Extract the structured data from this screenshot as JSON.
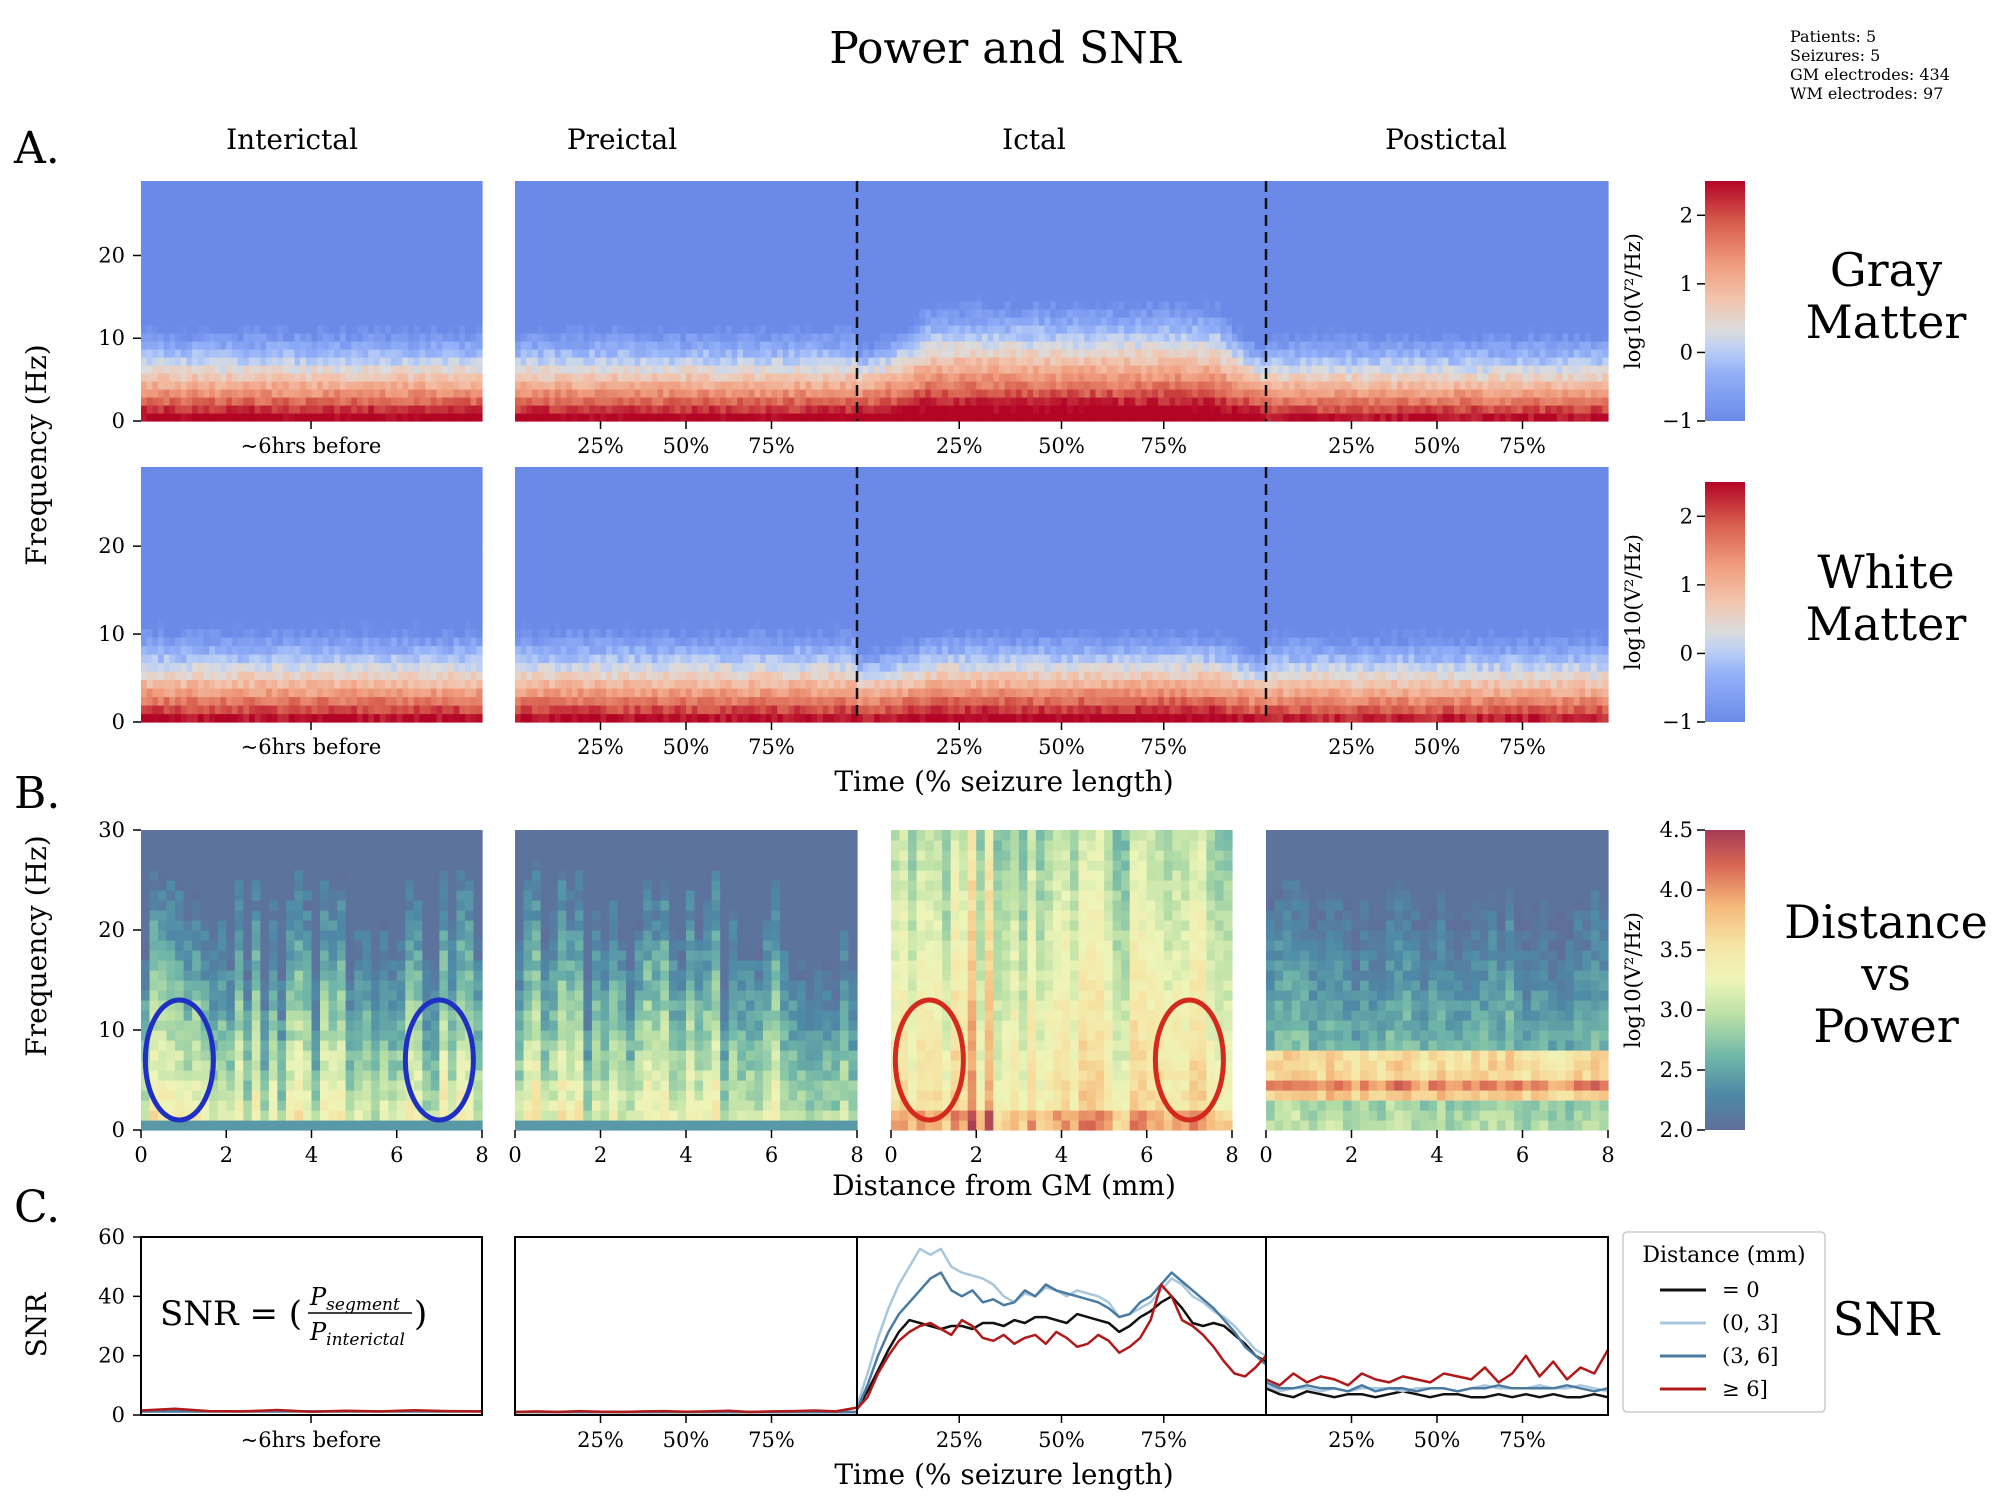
{
  "figure": {
    "title": "Power and SNR",
    "stats": [
      "Patients: 5",
      "Seizures: 5",
      "GM electrodes: 434",
      "WM electrodes: 97"
    ],
    "panel_labels": [
      "A.",
      "B.",
      "C."
    ],
    "columns": [
      "Interictal",
      "Preictal",
      "Ictal",
      "Postictal"
    ],
    "row_labels": {
      "gray": [
        "Gray",
        "Matter"
      ],
      "white": [
        "White",
        "Matter"
      ],
      "distance": [
        "Distance",
        "vs",
        "Power"
      ],
      "snr": "SNR"
    },
    "axis_labels": {
      "frequency": "Frequency (Hz)",
      "time": "Time (% seizure length)",
      "distance": "Distance from GM (mm)",
      "snr": "SNR"
    },
    "interictal_tick": "~6hrs before",
    "snr_formula": {
      "lhs": "SNR = (",
      "numerator": "P",
      "num_sub": "segment",
      "denominator": "P",
      "den_sub": "interictal",
      "rhs": ")"
    }
  },
  "chart_data": [
    {
      "type": "heatmap",
      "panel": "A",
      "name": "Gray Matter",
      "ylabel": "Frequency (Hz)",
      "xlabel": "Time (% seizure length)",
      "y_ticks": [
        0,
        10,
        20
      ],
      "ylim": [
        0,
        29
      ],
      "x_ticks": [
        "25%",
        "50%",
        "75%"
      ],
      "colorbar": {
        "label": "log10(V²/Hz)",
        "ticks": [
          -1,
          0,
          1,
          2
        ],
        "range": [
          -1,
          2.5
        ],
        "cmap": "coolwarm"
      },
      "segments": [
        "Interictal",
        "Preictal",
        "Ictal",
        "Postictal"
      ]
    },
    {
      "type": "heatmap",
      "panel": "A",
      "name": "White Matter",
      "ylabel": "Frequency (Hz)",
      "xlabel": "Time (% seizure length)",
      "y_ticks": [
        0,
        10,
        20
      ],
      "ylim": [
        0,
        29
      ],
      "x_ticks": [
        "25%",
        "50%",
        "75%"
      ],
      "colorbar": {
        "label": "log10(V²/Hz)",
        "ticks": [
          -1,
          0,
          1,
          2
        ],
        "range": [
          -1,
          2.5
        ],
        "cmap": "coolwarm"
      },
      "segments": [
        "Interictal",
        "Preictal",
        "Ictal",
        "Postictal"
      ]
    },
    {
      "type": "heatmap",
      "panel": "B",
      "name": "Distance vs Power",
      "ylabel": "Frequency (Hz)",
      "xlabel": "Distance from GM (mm)",
      "x_ticks": [
        0,
        2,
        4,
        6,
        8
      ],
      "xlim": [
        0,
        8
      ],
      "y_ticks": [
        0,
        10,
        20,
        30
      ],
      "ylim": [
        0,
        30
      ],
      "colorbar": {
        "label": "log10(V²/Hz)",
        "ticks": [
          2.0,
          2.5,
          3.0,
          3.5,
          4.0,
          4.5
        ],
        "range": [
          2.0,
          4.5
        ],
        "cmap": "Spectral_r"
      },
      "segments": [
        "Interictal",
        "Preictal",
        "Ictal",
        "Postictal"
      ],
      "annotations": [
        {
          "segment": "Interictal",
          "center": [
            0.9,
            7
          ],
          "color": "#1f2fc4"
        },
        {
          "segment": "Interictal",
          "center": [
            7.0,
            7
          ],
          "color": "#1f2fc4"
        },
        {
          "segment": "Ictal",
          "center": [
            0.9,
            7
          ],
          "color": "#d42a1e"
        },
        {
          "segment": "Ictal",
          "center": [
            7.0,
            7
          ],
          "color": "#d42a1e"
        }
      ]
    },
    {
      "type": "line",
      "panel": "C",
      "ylabel": "SNR",
      "xlabel": "Time (% seizure length)",
      "ylim": [
        0,
        60
      ],
      "y_ticks": [
        0,
        20,
        40,
        60
      ],
      "x_ticks": [
        "25%",
        "50%",
        "75%"
      ],
      "legend": {
        "title": "Distance (mm)",
        "placement": "right"
      },
      "series": [
        {
          "name": "= 0",
          "color": "#111111",
          "interictal": [
            1.2,
            1.2
          ],
          "preictal": [
            1.0,
            1.0
          ],
          "ictal": [
            2,
            8,
            15,
            22,
            28,
            32,
            31,
            30,
            29,
            30,
            30,
            29,
            31,
            31,
            30,
            32,
            31,
            33,
            33,
            32,
            31,
            34,
            33,
            32,
            31,
            28,
            30,
            33,
            35,
            38,
            40,
            36,
            31,
            30,
            31,
            30,
            27,
            24,
            20,
            18
          ],
          "postictal": [
            9,
            7,
            6,
            8,
            7,
            6,
            7,
            7,
            6,
            7,
            8,
            7,
            6,
            7,
            7,
            6,
            6,
            7,
            6,
            7,
            6,
            7,
            6,
            6,
            7,
            6
          ]
        },
        {
          "name": "(0, 3]",
          "color": "#a9c7dd",
          "interictal": [
            1.2,
            1.2
          ],
          "preictal": [
            1.0,
            1.0
          ],
          "ictal": [
            3,
            14,
            26,
            36,
            44,
            50,
            56,
            54,
            56,
            50,
            48,
            47,
            46,
            44,
            40,
            38,
            41,
            40,
            43,
            42,
            40,
            42,
            41,
            40,
            38,
            33,
            34,
            36,
            38,
            42,
            46,
            44,
            40,
            38,
            35,
            33,
            30,
            26,
            22,
            20
          ],
          "postictal": [
            10,
            8,
            9,
            9,
            8,
            9,
            8,
            9,
            9,
            9,
            8,
            9,
            9,
            9,
            8,
            9,
            10,
            9,
            9,
            9,
            10,
            9,
            9,
            10,
            9,
            8
          ]
        },
        {
          "name": "(3, 6]",
          "color": "#4a7aa2",
          "interictal": [
            1.2,
            1.2
          ],
          "preictal": [
            1.0,
            1.0
          ],
          "ictal": [
            2,
            10,
            20,
            28,
            34,
            38,
            42,
            46,
            48,
            42,
            40,
            42,
            38,
            39,
            37,
            38,
            42,
            40,
            44,
            42,
            41,
            40,
            39,
            38,
            36,
            33,
            34,
            38,
            40,
            44,
            48,
            45,
            42,
            39,
            36,
            32,
            28,
            23,
            20,
            17
          ],
          "postictal": [
            11,
            9,
            9,
            10,
            9,
            9,
            8,
            10,
            8,
            9,
            9,
            8,
            9,
            9,
            8,
            9,
            9,
            10,
            9,
            9,
            9,
            9,
            10,
            9,
            8,
            9
          ]
        },
        {
          "name": "≥ 6]",
          "color": "#b11a1a",
          "interictal": [
            1.5,
            2.1,
            1.3,
            1.2,
            1.7,
            1.1,
            1.4,
            1.2,
            1.6,
            1.3,
            1.2
          ],
          "preictal": [
            1.0,
            1.2,
            1.0,
            1.3,
            1.1,
            1.0,
            1.2,
            1.3,
            1.1,
            1.2,
            1.4,
            1.0,
            1.2,
            1.3,
            1.5,
            1.2,
            2.5
          ],
          "ictal": [
            2,
            6,
            14,
            20,
            25,
            28,
            30,
            31,
            29,
            27,
            32,
            30,
            26,
            25,
            27,
            24,
            26,
            27,
            24,
            28,
            26,
            23,
            24,
            27,
            25,
            21,
            23,
            26,
            32,
            44,
            40,
            32,
            30,
            27,
            23,
            18,
            14,
            13,
            16,
            20
          ],
          "postictal": [
            12,
            10,
            14,
            11,
            13,
            12,
            10,
            14,
            12,
            11,
            13,
            12,
            11,
            14,
            13,
            12,
            16,
            11,
            14,
            20,
            13,
            18,
            12,
            16,
            14,
            22
          ]
        }
      ]
    }
  ]
}
